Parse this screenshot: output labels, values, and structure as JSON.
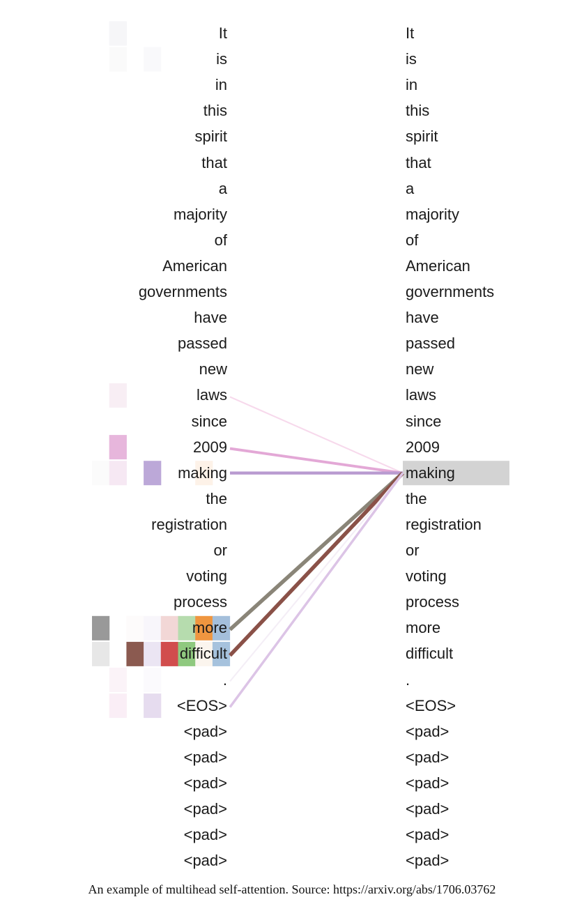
{
  "tokens": [
    "It",
    "is",
    "in",
    "this",
    "spirit",
    "that",
    "a",
    "majority",
    "of",
    "American",
    "governments",
    "have",
    "passed",
    "new",
    "laws",
    "since",
    "2009",
    "making",
    "the",
    "registration",
    "or",
    "voting",
    "process",
    "more",
    "difficult",
    ".",
    "<EOS>",
    "<pad>",
    "<pad>",
    "<pad>",
    "<pad>",
    "<pad>",
    "<pad>"
  ],
  "query_index": 17,
  "colors": {
    "highlight": "#d3d3d3",
    "heads": [
      "#999999",
      "#e7e7e7",
      "#8b5a50",
      "#c4b0dc",
      "#eec7c4",
      "#a9d39e",
      "#f0943a",
      "#9fbcd9"
    ]
  },
  "attention": {
    "lines": [
      {
        "source": 14,
        "color": "#f7d9ec",
        "weight": 0.15
      },
      {
        "source": 16,
        "color": "#e3a8d6",
        "weight": 0.6
      },
      {
        "source": 17,
        "color": "#b99bd0",
        "weight": 0.7
      },
      {
        "source": 23,
        "color": "#8a8578",
        "weight": 1.0
      },
      {
        "source": 24,
        "color": "#8a5148",
        "weight": 1.0
      },
      {
        "source": 25,
        "color": "#f4eef6",
        "weight": 0.15
      },
      {
        "source": 26,
        "color": "#dcc4e6",
        "weight": 0.5
      }
    ],
    "cells": [
      {
        "token": 0,
        "col": 1,
        "color": "#f6f6f8"
      },
      {
        "token": 1,
        "col": 1,
        "color": "#fafafa"
      },
      {
        "token": 1,
        "col": 3,
        "color": "#f9f9fb"
      },
      {
        "token": 14,
        "col": 1,
        "color": "#f8eef4"
      },
      {
        "token": 16,
        "col": 1,
        "color": "#e7b6dc"
      },
      {
        "token": 17,
        "col": 0,
        "color": "#fbfbfb"
      },
      {
        "token": 17,
        "col": 1,
        "color": "#f6e8f3"
      },
      {
        "token": 17,
        "col": 3,
        "color": "#bca8d8"
      },
      {
        "token": 17,
        "col": 6,
        "color": "#fdf2e8"
      },
      {
        "token": 23,
        "col": 0,
        "color": "#999999"
      },
      {
        "token": 23,
        "col": 2,
        "color": "#fdfbfb"
      },
      {
        "token": 23,
        "col": 3,
        "color": "#f8f6fb"
      },
      {
        "token": 23,
        "col": 4,
        "color": "#f2d7d6"
      },
      {
        "token": 23,
        "col": 5,
        "color": "#b6dcae"
      },
      {
        "token": 23,
        "col": 6,
        "color": "#ef9640"
      },
      {
        "token": 23,
        "col": 7,
        "color": "#a4bfdb"
      },
      {
        "token": 24,
        "col": 0,
        "color": "#e7e7e7"
      },
      {
        "token": 24,
        "col": 2,
        "color": "#8b5a50"
      },
      {
        "token": 24,
        "col": 3,
        "color": "#ebe5f3"
      },
      {
        "token": 24,
        "col": 4,
        "color": "#d14d4d"
      },
      {
        "token": 24,
        "col": 5,
        "color": "#8fc97f"
      },
      {
        "token": 24,
        "col": 6,
        "color": "#fbf5ee"
      },
      {
        "token": 24,
        "col": 7,
        "color": "#a6c2dd"
      },
      {
        "token": 25,
        "col": 1,
        "color": "#fbf3f8"
      },
      {
        "token": 25,
        "col": 3,
        "color": "#fbfafd"
      },
      {
        "token": 26,
        "col": 1,
        "color": "#faeef6"
      },
      {
        "token": 26,
        "col": 3,
        "color": "#e6dcef"
      }
    ]
  },
  "caption": "An example of multihead self-attention. Source: https://arxiv.org/abs/1706.03762"
}
